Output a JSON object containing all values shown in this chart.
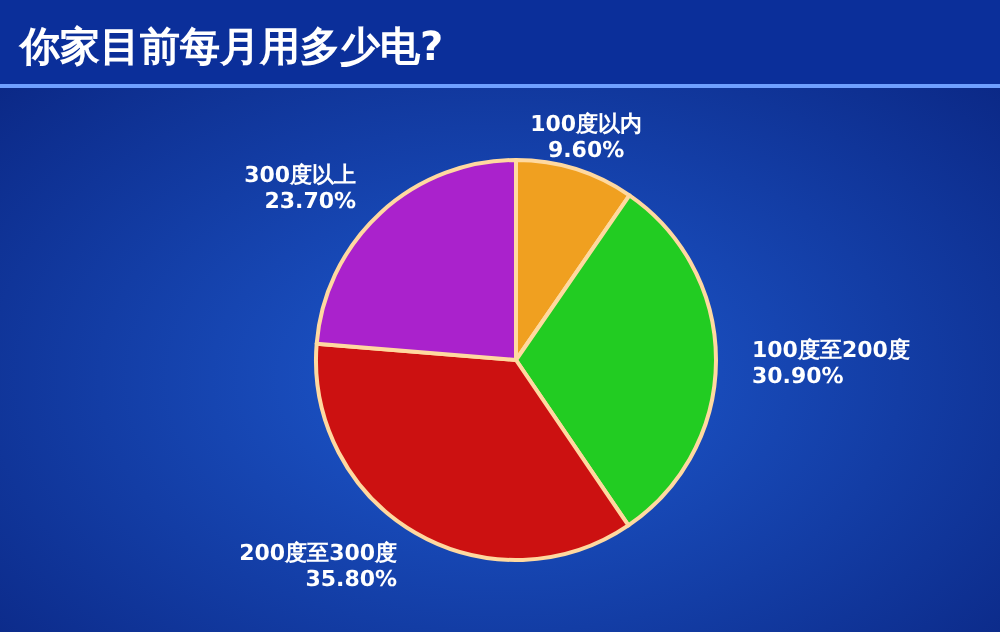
{
  "chart_data": {
    "type": "pie",
    "title": "你家目前每月用多少电?",
    "categories": [
      "100度以内",
      "100度至200度",
      "200度至300度",
      "300度以上"
    ],
    "values": [
      9.6,
      30.9,
      35.8,
      23.7
    ],
    "colors": [
      "#f0a020",
      "#22cc22",
      "#cc1111",
      "#aa22cc"
    ],
    "value_labels": [
      "9.60%",
      "30.90%",
      "35.80%",
      "23.70%"
    ]
  }
}
